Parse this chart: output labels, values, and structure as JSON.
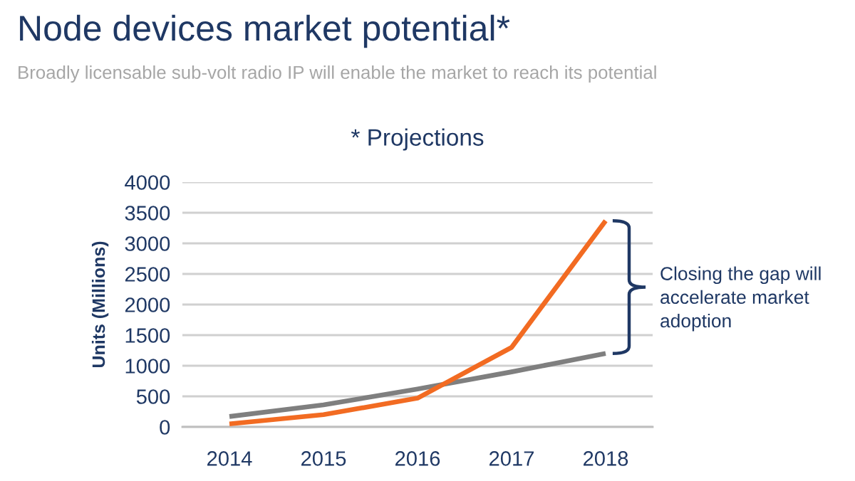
{
  "chart_data": {
    "type": "line",
    "title": "Node devices market potential*",
    "subtitle": "Broadly licensable sub-volt radio IP will enable the market to reach its potential",
    "ylabel": "Units (Millions)",
    "annotations": [
      "* Projections",
      "Closing the gap will\naccelerate market\nadoption"
    ],
    "categories": [
      "2014",
      "2015",
      "2016",
      "2017",
      "2018"
    ],
    "series": [
      {
        "color": "#7f7f7f",
        "values": [
          170,
          360,
          620,
          900,
          1200
        ]
      },
      {
        "color": "#f26b22",
        "values": [
          50,
          200,
          470,
          1300,
          3370
        ]
      }
    ],
    "ylim": [
      0,
      4000
    ],
    "yticks": [
      0,
      500,
      1000,
      1500,
      2000,
      2500,
      3000,
      3500,
      4000
    ],
    "grid": "y",
    "line_style": "solid"
  }
}
